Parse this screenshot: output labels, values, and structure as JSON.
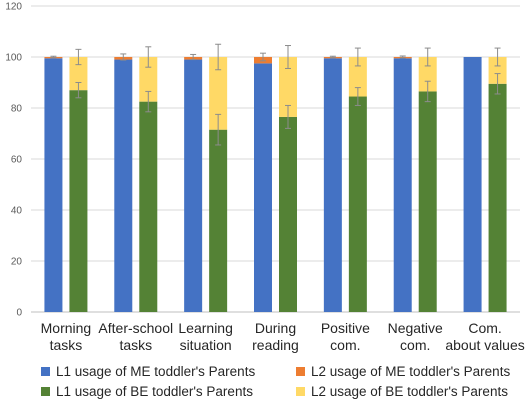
{
  "chart_data": {
    "type": "bar",
    "stacked": true,
    "grouped": true,
    "title": "",
    "xlabel": "",
    "ylabel": "",
    "ylim": [
      0,
      120
    ],
    "yticks": [
      0,
      20,
      40,
      60,
      80,
      100,
      120
    ],
    "grid": true,
    "legend_position": "bottom",
    "categories": [
      [
        "Morning",
        "tasks"
      ],
      [
        "After-school",
        "tasks"
      ],
      [
        "Learning",
        "situation"
      ],
      [
        "During",
        "reading"
      ],
      [
        "Positive",
        "com."
      ],
      [
        "Negative",
        "com."
      ],
      [
        "Com.",
        "about values"
      ]
    ],
    "groups": [
      {
        "name": "ME toddler's Parents",
        "series": [
          {
            "name": "L1 usage of ME toddler's Parents",
            "color": "#4472C4",
            "values": [
              99.5,
              99.0,
              99.0,
              97.5,
              99.5,
              99.5,
              100.0
            ],
            "error": [
              0,
              0,
              0,
              0,
              0,
              0,
              0
            ]
          },
          {
            "name": "L2 usage of ME toddler's Parents",
            "color": "#ED7D31",
            "values": [
              0.5,
              1.0,
              1.0,
              2.5,
              0.5,
              0.5,
              0.0
            ],
            "error": [
              0.3,
              1.2,
              1.0,
              1.5,
              0.3,
              0.4,
              0
            ]
          }
        ]
      },
      {
        "name": "BE toddler's Parents",
        "series": [
          {
            "name": "L1 usage of BE toddler's Parents",
            "color": "#548235",
            "values": [
              87.0,
              82.5,
              71.5,
              76.5,
              84.5,
              86.5,
              89.5
            ],
            "error": [
              3.0,
              4.0,
              6.0,
              4.5,
              3.5,
              4.0,
              4.0
            ]
          },
          {
            "name": "L2 usage of BE toddler's Parents",
            "color": "#FFD966",
            "values": [
              13.0,
              17.5,
              28.5,
              23.5,
              15.5,
              13.5,
              10.5
            ],
            "error": [
              3.0,
              4.0,
              5.0,
              4.5,
              3.5,
              3.5,
              3.5
            ]
          }
        ]
      }
    ],
    "legend": [
      "L1 usage of ME toddler's Parents",
      "L2 usage of ME toddler's Parents",
      "L1 usage of BE toddler's Parents",
      "L2 usage of BE toddler's Parents"
    ]
  }
}
